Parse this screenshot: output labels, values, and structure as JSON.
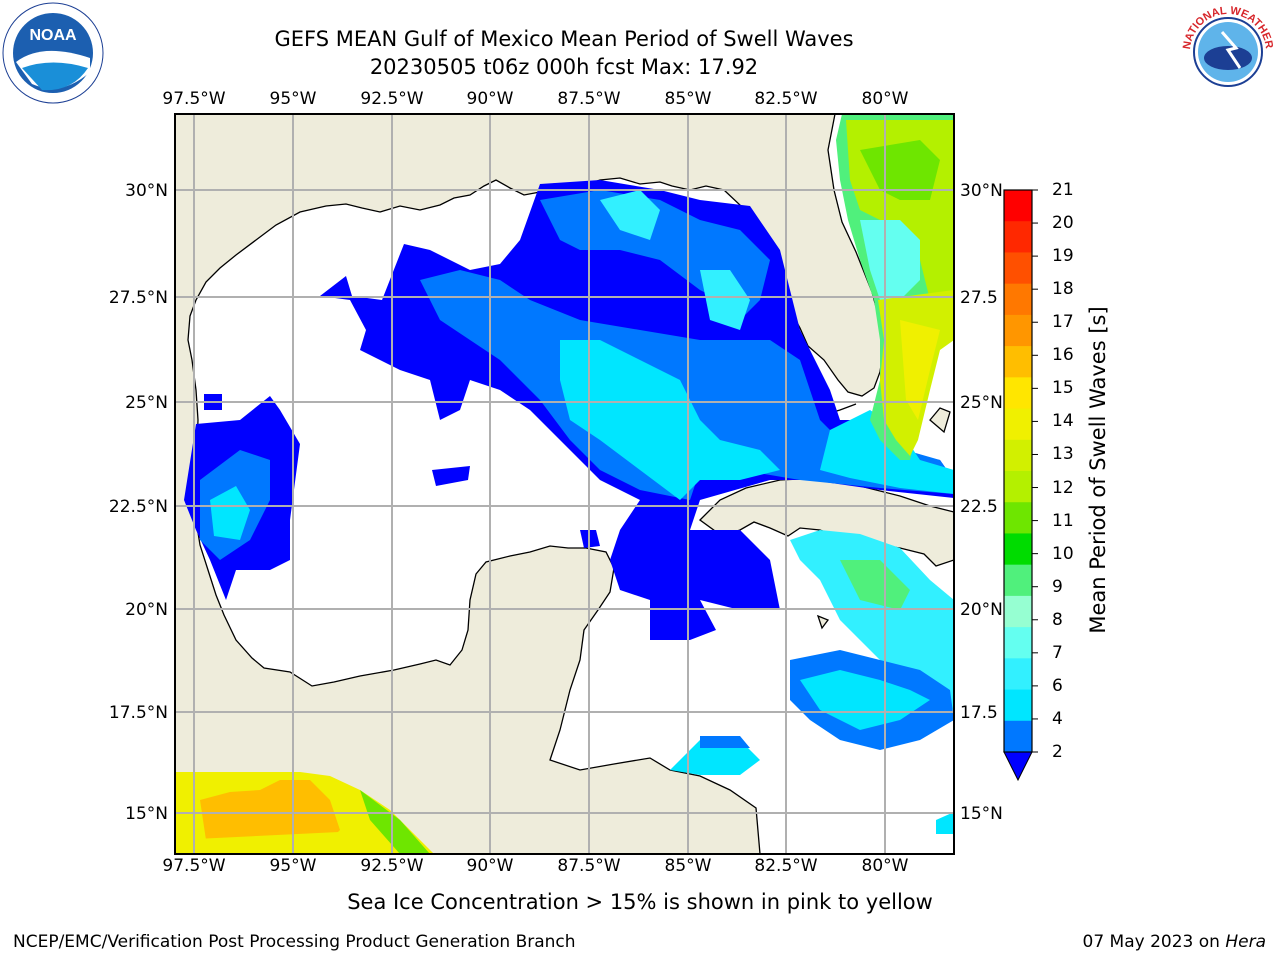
{
  "header": {
    "title_line1": "GEFS MEAN Gulf of Mexico Mean Period of Swell Waves",
    "title_line2": "20230505 t06z 000h fcst   Max: 17.92"
  },
  "map": {
    "lon_labels": [
      "97.5°W",
      "95°W",
      "92.5°W",
      "90°W",
      "87.5°W",
      "85°W",
      "82.5°W",
      "80°W"
    ],
    "lat_labels_left": [
      "30°N",
      "27.5°N",
      "25°N",
      "22.5°N",
      "20°N",
      "17.5°N",
      "15°N"
    ],
    "lat_labels_right": [
      "30°N",
      "27.5",
      "25°N",
      "22.5",
      "20°N",
      "17.5",
      "15°N"
    ],
    "colors": {
      "land": "#eeecdb",
      "water": "#ffffff",
      "grid": "#b0b0b0",
      "coast": "#000000"
    }
  },
  "colorbar": {
    "title": "Mean Period of Swell Waves [s]",
    "ticks": [
      "21",
      "20",
      "19",
      "18",
      "17",
      "16",
      "15",
      "14",
      "13",
      "12",
      "11",
      "10",
      "9",
      "8",
      "7",
      "6",
      "4",
      "2"
    ],
    "colors": [
      "#ff0000",
      "#ff2800",
      "#ff5000",
      "#ff7800",
      "#ff9600",
      "#ffbe00",
      "#ffe600",
      "#f0f000",
      "#d2f000",
      "#b4f000",
      "#6ee600",
      "#00dc00",
      "#50f07c",
      "#96ffd2",
      "#64fff0",
      "#32f0ff",
      "#00e6ff",
      "#0078ff",
      "#0000ff"
    ]
  },
  "caption": "Sea Ice Concentration > 15% is shown in pink to yellow",
  "footer": {
    "left": "NCEP/EMC/Verification Post Processing Product Generation Branch",
    "right_date": "07 May 2023 on ",
    "right_host": "Hera"
  },
  "logos": {
    "noaa_text": "NOAA",
    "nws_text": "NATIONAL WEATHER SERVICE"
  }
}
